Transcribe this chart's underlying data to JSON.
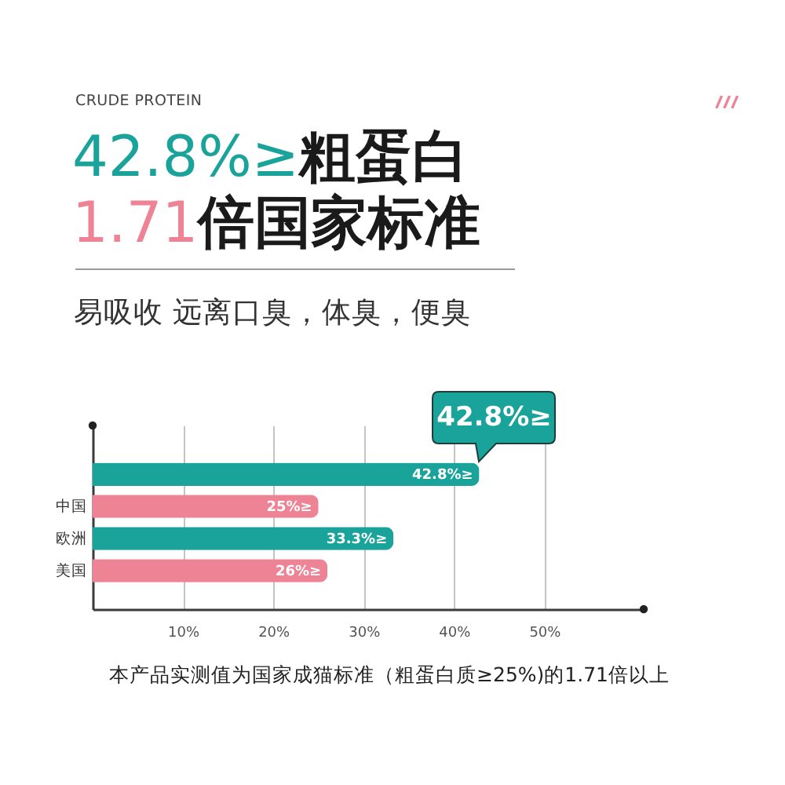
{
  "chart_data": {
    "type": "bar",
    "orientation": "horizontal",
    "title": "42.8%≥粗蛋白\n1.71倍国家标准",
    "subtitle": "易吸收 远离口臭，体臭，便臭",
    "categories": [
      null,
      "中国",
      "欧洲",
      "美国"
    ],
    "values": [
      42.8,
      25,
      33.3,
      26
    ],
    "colors": [
      "#1aa39a",
      "#ee8396",
      "#1aa39a",
      "#ee8396"
    ],
    "value_labels": [
      "42.8%≥",
      "25%≥",
      "33.3%≥",
      "26%≥"
    ],
    "xlim": [
      0,
      61
    ],
    "xticks": [
      {
        "value": 10,
        "label": "10%"
      },
      {
        "value": 20,
        "label": "20%"
      },
      {
        "value": 30,
        "label": "30%"
      },
      {
        "value": 40,
        "label": "40%"
      },
      {
        "value": 50,
        "label": "50%"
      }
    ],
    "grid": "x",
    "annotations": [
      "CRUDE PROTEIN",
      "42.8%≥",
      "本产品实测值为国家成猫标准（粗蛋白质≥25%)的1.71倍以上"
    ]
  }
}
